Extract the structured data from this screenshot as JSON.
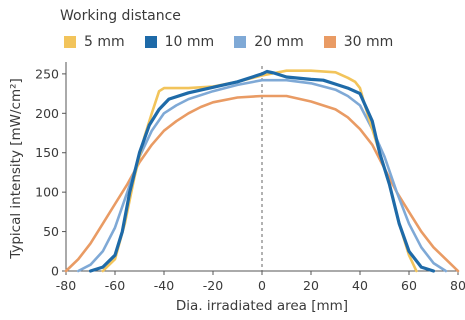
{
  "chart_data": {
    "type": "line",
    "legend_title": "Working distance",
    "xlabel": "Dia. irradiated area [mm]",
    "ylabel": "Typical intensity [mW/cm²]",
    "xlim": [
      -80,
      80
    ],
    "ylim": [
      0,
      260
    ],
    "xticks": [
      -80,
      -60,
      -40,
      -20,
      0,
      20,
      40,
      60,
      80
    ],
    "yticks": [
      0,
      50,
      100,
      150,
      200,
      250
    ],
    "grid": false,
    "legend_position": "top",
    "center_line_x": 0,
    "series": [
      {
        "name": "5 mm",
        "color": "#f2c45b",
        "points": [
          [
            -65,
            0
          ],
          [
            -60,
            15
          ],
          [
            -56,
            60
          ],
          [
            -52,
            120
          ],
          [
            -48,
            170
          ],
          [
            -45,
            200
          ],
          [
            -42,
            228
          ],
          [
            -40,
            232
          ],
          [
            -30,
            232
          ],
          [
            -20,
            234
          ],
          [
            -10,
            240
          ],
          [
            0,
            248
          ],
          [
            10,
            254
          ],
          [
            20,
            254
          ],
          [
            30,
            252
          ],
          [
            35,
            245
          ],
          [
            38,
            240
          ],
          [
            40,
            232
          ],
          [
            42,
            210
          ],
          [
            45,
            180
          ],
          [
            48,
            150
          ],
          [
            52,
            110
          ],
          [
            56,
            60
          ],
          [
            60,
            20
          ],
          [
            63,
            0
          ]
        ]
      },
      {
        "name": "10 mm",
        "color": "#1e6aa8",
        "points": [
          [
            -70,
            0
          ],
          [
            -65,
            5
          ],
          [
            -60,
            20
          ],
          [
            -57,
            50
          ],
          [
            -54,
            100
          ],
          [
            -50,
            150
          ],
          [
            -46,
            185
          ],
          [
            -42,
            205
          ],
          [
            -38,
            218
          ],
          [
            -30,
            226
          ],
          [
            -20,
            233
          ],
          [
            -10,
            240
          ],
          [
            0,
            250
          ],
          [
            2,
            253
          ],
          [
            5,
            251
          ],
          [
            10,
            246
          ],
          [
            20,
            243
          ],
          [
            25,
            242
          ],
          [
            30,
            237
          ],
          [
            35,
            232
          ],
          [
            40,
            225
          ],
          [
            45,
            190
          ],
          [
            48,
            150
          ],
          [
            52,
            110
          ],
          [
            56,
            60
          ],
          [
            60,
            25
          ],
          [
            65,
            5
          ],
          [
            70,
            0
          ]
        ]
      },
      {
        "name": "20 mm",
        "color": "#7fa9d6",
        "points": [
          [
            -75,
            0
          ],
          [
            -70,
            8
          ],
          [
            -65,
            25
          ],
          [
            -60,
            55
          ],
          [
            -55,
            100
          ],
          [
            -50,
            145
          ],
          [
            -45,
            178
          ],
          [
            -40,
            200
          ],
          [
            -35,
            210
          ],
          [
            -30,
            218
          ],
          [
            -20,
            228
          ],
          [
            -10,
            236
          ],
          [
            0,
            242
          ],
          [
            10,
            242
          ],
          [
            20,
            238
          ],
          [
            30,
            230
          ],
          [
            35,
            222
          ],
          [
            40,
            210
          ],
          [
            45,
            180
          ],
          [
            50,
            145
          ],
          [
            55,
            100
          ],
          [
            60,
            60
          ],
          [
            65,
            30
          ],
          [
            70,
            10
          ],
          [
            75,
            0
          ]
        ]
      },
      {
        "name": "30 mm",
        "color": "#e99b64",
        "points": [
          [
            -80,
            0
          ],
          [
            -75,
            15
          ],
          [
            -70,
            35
          ],
          [
            -65,
            60
          ],
          [
            -60,
            85
          ],
          [
            -55,
            110
          ],
          [
            -50,
            138
          ],
          [
            -45,
            160
          ],
          [
            -40,
            178
          ],
          [
            -35,
            190
          ],
          [
            -30,
            200
          ],
          [
            -25,
            208
          ],
          [
            -20,
            214
          ],
          [
            -10,
            220
          ],
          [
            0,
            222
          ],
          [
            10,
            222
          ],
          [
            20,
            215
          ],
          [
            30,
            205
          ],
          [
            35,
            195
          ],
          [
            40,
            180
          ],
          [
            45,
            160
          ],
          [
            50,
            130
          ],
          [
            55,
            100
          ],
          [
            60,
            75
          ],
          [
            65,
            50
          ],
          [
            70,
            30
          ],
          [
            75,
            15
          ],
          [
            80,
            0
          ]
        ]
      }
    ]
  }
}
